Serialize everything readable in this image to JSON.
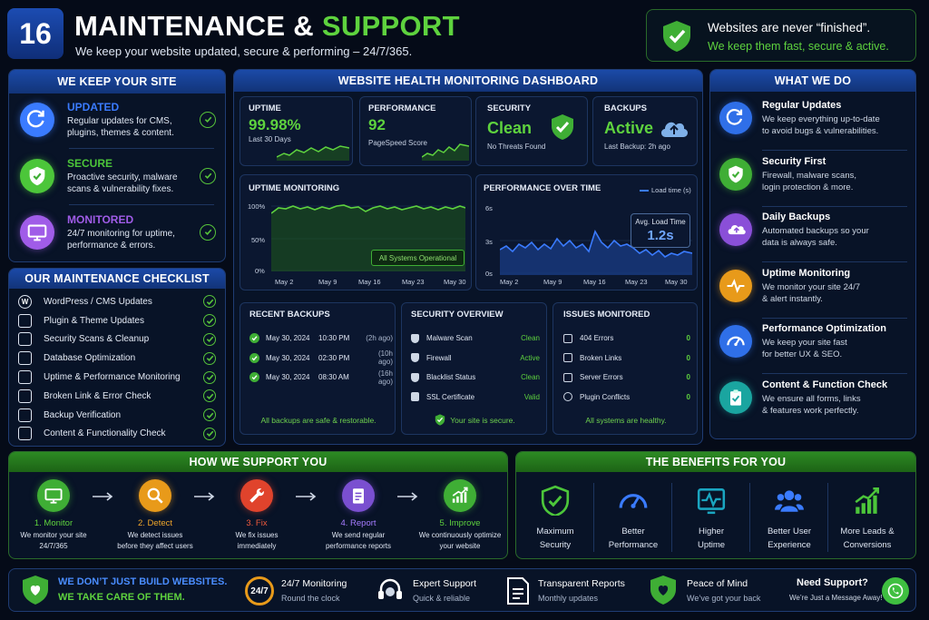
{
  "header": {
    "number": "16",
    "title_a": "MAINTENANCE & ",
    "title_b": "SUPPORT",
    "subtitle": "We keep your website updated, secure & performing – 24/7/365.",
    "quote_line1": "Websites are never “finished”.",
    "quote_line2": "We keep them fast, secure & active."
  },
  "keep": {
    "title": "WE KEEP YOUR SITE",
    "items": [
      {
        "title": "UPDATED",
        "desc1": "Regular updates for CMS,",
        "desc2": "plugins, themes & content.",
        "color": "#3a7bff",
        "icon": "refresh-icon"
      },
      {
        "title": "SECURE",
        "desc1": "Proactive security, malware",
        "desc2": "scans & vulnerability fixes.",
        "color": "#4cc63a",
        "icon": "shield-icon"
      },
      {
        "title": "MONITORED",
        "desc1": "24/7 monitoring for uptime,",
        "desc2": "performance & errors.",
        "color": "#a05ce8",
        "icon": "monitor-icon"
      }
    ]
  },
  "checklist": {
    "title": "OUR MAINTENANCE CHECKLIST",
    "items": [
      "WordPress / CMS Updates",
      "Plugin & Theme Updates",
      "Security Scans & Cleanup",
      "Database Optimization",
      "Uptime & Performance Monitoring",
      "Broken Link & Error Check",
      "Backup Verification",
      "Content & Functionality Check"
    ]
  },
  "dashboard": {
    "title": "WEBSITE HEALTH MONITORING DASHBOARD",
    "uptime": {
      "label": "UPTIME",
      "value": "99.98%",
      "sub": "Last 30 Days"
    },
    "performance": {
      "label": "PERFORMANCE",
      "value": "92",
      "sub": "PageSpeed Score"
    },
    "security": {
      "label": "SECURITY",
      "value": "Clean",
      "sub": "No Threats Found"
    },
    "backups": {
      "label": "BACKUPS",
      "value": "Active",
      "sub": "Last Backup: 2h ago"
    },
    "uptime_mon": {
      "title": "UPTIME MONITORING",
      "status": "All Systems Operational"
    },
    "perf_time": {
      "title": "PERFORMANCE OVER TIME",
      "legend": "Load time (s)",
      "avg_label": "Avg. Load Time",
      "avg_value": "1.2s"
    },
    "recent_backups": {
      "title": "RECENT BACKUPS",
      "rows": [
        [
          "May 30, 2024",
          "10:30 PM",
          "(2h ago)"
        ],
        [
          "May 30, 2024",
          "02:30 PM",
          "(10h ago)"
        ],
        [
          "May 30, 2024",
          "08:30 AM",
          "(16h ago)"
        ]
      ],
      "footer": "All backups are safe & restorable."
    },
    "security_overview": {
      "title": "SECURITY OVERVIEW",
      "rows": [
        [
          "Malware Scan",
          "Clean"
        ],
        [
          "Firewall",
          "Active"
        ],
        [
          "Blacklist Status",
          "Clean"
        ],
        [
          "SSL Certificate",
          "Valid"
        ]
      ],
      "footer": "Your site is secure."
    },
    "issues": {
      "title": "ISSUES MONITORED",
      "rows": [
        [
          "404 Errors",
          "0"
        ],
        [
          "Broken Links",
          "0"
        ],
        [
          "Server Errors",
          "0"
        ],
        [
          "Plugin Conflicts",
          "0"
        ]
      ],
      "footer": "All systems are healthy."
    }
  },
  "whatwedo": {
    "title": "WHAT WE DO",
    "items": [
      {
        "title": "Regular Updates",
        "d1": "We keep everything up-to-date",
        "d2": "to avoid bugs & vulnerabilities.",
        "color": "#2f6fe8",
        "icon": "refresh-icon"
      },
      {
        "title": "Security First",
        "d1": "Firewall, malware scans,",
        "d2": "login protection & more.",
        "color": "#3fae35",
        "icon": "shield-icon"
      },
      {
        "title": "Daily Backups",
        "d1": "Automated backups so your",
        "d2": "data is always safe.",
        "color": "#8a4fd8",
        "icon": "cloud-upload-icon"
      },
      {
        "title": "Uptime Monitoring",
        "d1": "We monitor your site 24/7",
        "d2": "& alert instantly.",
        "color": "#e89a1a",
        "icon": "pulse-icon"
      },
      {
        "title": "Performance Optimization",
        "d1": "We keep your site fast",
        "d2": "for better UX & SEO.",
        "color": "#2f6fe8",
        "icon": "speedometer-icon"
      },
      {
        "title": "Content & Function Check",
        "d1": "We ensure all forms, links",
        "d2": "& features work perfectly.",
        "color": "#1aa5a0",
        "icon": "clipboard-check-icon"
      }
    ]
  },
  "support": {
    "title": "HOW WE SUPPORT YOU",
    "steps": [
      {
        "label": "1. Monitor",
        "d1": "We monitor your site",
        "d2": "24/7/365",
        "color": "#3fae35",
        "lc": "#5ed23e",
        "icon": "monitor-icon"
      },
      {
        "label": "2. Detect",
        "d1": "We detect issues",
        "d2": "before they affect users",
        "color": "#e89a1a",
        "lc": "#f0a62a",
        "icon": "search-icon"
      },
      {
        "label": "3. Fix",
        "d1": "We fix issues",
        "d2": "immediately",
        "color": "#e0432c",
        "lc": "#f05a3c",
        "icon": "wrench-icon"
      },
      {
        "label": "4. Report",
        "d1": "We send regular",
        "d2": "performance reports",
        "color": "#7a4fd0",
        "lc": "#a57bff",
        "icon": "report-icon"
      },
      {
        "label": "5. Improve",
        "d1": "We continuously optimize",
        "d2": "your website",
        "color": "#3fae35",
        "lc": "#5ed23e",
        "icon": "growth-chart-icon"
      }
    ]
  },
  "benefits": {
    "title": "THE BENEFITS FOR YOU",
    "items": [
      {
        "l1": "Maximum",
        "l2": "Security",
        "icon": "shield-check-icon",
        "color": "#4cc63a"
      },
      {
        "l1": "Better",
        "l2": "Performance",
        "icon": "speedometer-icon",
        "color": "#3a7bff"
      },
      {
        "l1": "Higher",
        "l2": "Uptime",
        "icon": "pulse-icon",
        "color": "#1aa5c0"
      },
      {
        "l1": "Better User",
        "l2": "Experience",
        "icon": "users-icon",
        "color": "#3a7bff"
      },
      {
        "l1": "More Leads &",
        "l2": "Conversions",
        "icon": "growth-chart-icon",
        "color": "#4cc63a"
      }
    ]
  },
  "footer": {
    "line1": "WE DON’T JUST BUILD WEBSITES.",
    "line2": "WE TAKE CARE OF THEM.",
    "badge": "24/7",
    "items": [
      {
        "t": "24/7 Monitoring",
        "s": "Round the clock"
      },
      {
        "t": "Expert Support",
        "s": "Quick & reliable"
      },
      {
        "t": "Transparent Reports",
        "s": "Monthly updates"
      },
      {
        "t": "Peace of Mind",
        "s": "We’ve got your back"
      },
      {
        "t": "Need Support?",
        "s": "We’re Just a Message Away!"
      }
    ]
  }
}
